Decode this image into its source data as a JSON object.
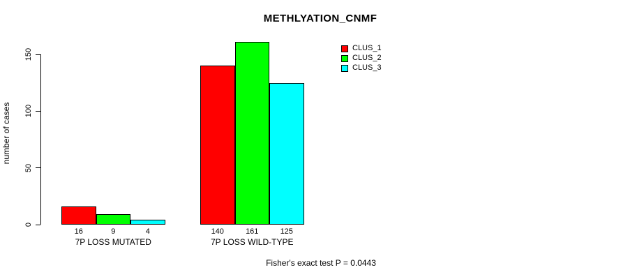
{
  "title": "METHLYATION_CNMF",
  "ylabel": "number of cases",
  "footnote": "Fisher's exact test P = 0.0443",
  "chart_data": {
    "type": "bar",
    "title": "METHLYATION_CNMF",
    "xlabel": "",
    "ylabel": "number of cases",
    "categories": [
      "7P LOSS MUTATED",
      "7P LOSS WILD-TYPE"
    ],
    "series": [
      {
        "name": "CLUS_1",
        "color": "#ff0000",
        "values": [
          16,
          140
        ]
      },
      {
        "name": "CLUS_2",
        "color": "#00ff00",
        "values": [
          9,
          161
        ]
      },
      {
        "name": "CLUS_3",
        "color": "#00ffff",
        "values": [
          4,
          125
        ]
      }
    ],
    "show_bar_value_labels": true,
    "yticks": [
      0,
      50,
      100,
      150
    ],
    "ylim": [
      0,
      169
    ],
    "grid": false,
    "legend_position": "top-right",
    "background": "#ffffff",
    "annotation": "Fisher's exact test P = 0.0443"
  }
}
